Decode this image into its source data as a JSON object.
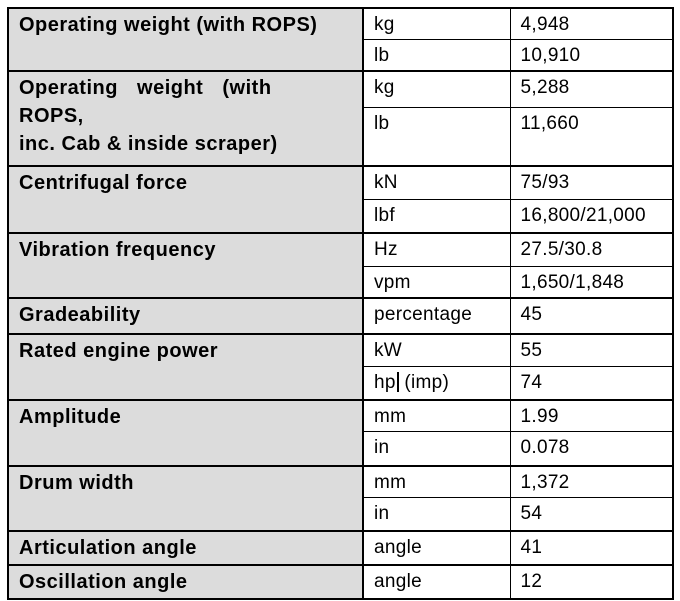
{
  "page": {
    "background": "#ffffff"
  },
  "spec_table": {
    "label_bg": "#dcdcdc",
    "border_color": "#000000",
    "groups": [
      {
        "label": "Operating weight (with ROPS)",
        "rows": [
          {
            "unit": "kg",
            "value": "4,948"
          },
          {
            "unit": "lb",
            "value": "10,910"
          }
        ]
      },
      {
        "label_lines": [
          "Operating weight (with ROPS,",
          "inc. Cab & inside scraper)"
        ],
        "rows": [
          {
            "unit": "kg",
            "value": "5,288"
          },
          {
            "unit": "lb",
            "value": "11,660"
          }
        ]
      },
      {
        "label": "Centrifugal force",
        "rows": [
          {
            "unit": "kN",
            "value": "75/93"
          },
          {
            "unit": "lbf",
            "value": "16,800/21,000"
          }
        ]
      },
      {
        "label": "Vibration frequency",
        "rows": [
          {
            "unit": "Hz",
            "value": "27.5/30.8"
          },
          {
            "unit": "vpm",
            "value": "1,650/1,848"
          }
        ]
      },
      {
        "label": "Gradeability",
        "rows": [
          {
            "unit": "percentage",
            "value": "45"
          }
        ]
      },
      {
        "label": "Rated engine power",
        "rows": [
          {
            "unit": "kW",
            "value": "55"
          },
          {
            "unit": "hp (imp)",
            "value": "74",
            "cursor_after_chars": 2
          }
        ]
      },
      {
        "label": "Amplitude",
        "rows": [
          {
            "unit": "mm",
            "value": "1.99"
          },
          {
            "unit": "in",
            "value": "0.078"
          }
        ]
      },
      {
        "label": "Drum width",
        "rows": [
          {
            "unit": "mm",
            "value": "1,372"
          },
          {
            "unit": "in",
            "value": "54"
          }
        ]
      },
      {
        "label": "Articulation angle",
        "rows": [
          {
            "unit": "angle",
            "value": "41"
          }
        ]
      },
      {
        "label": "Oscillation angle",
        "rows": [
          {
            "unit": "angle",
            "value": "12"
          }
        ]
      }
    ]
  }
}
